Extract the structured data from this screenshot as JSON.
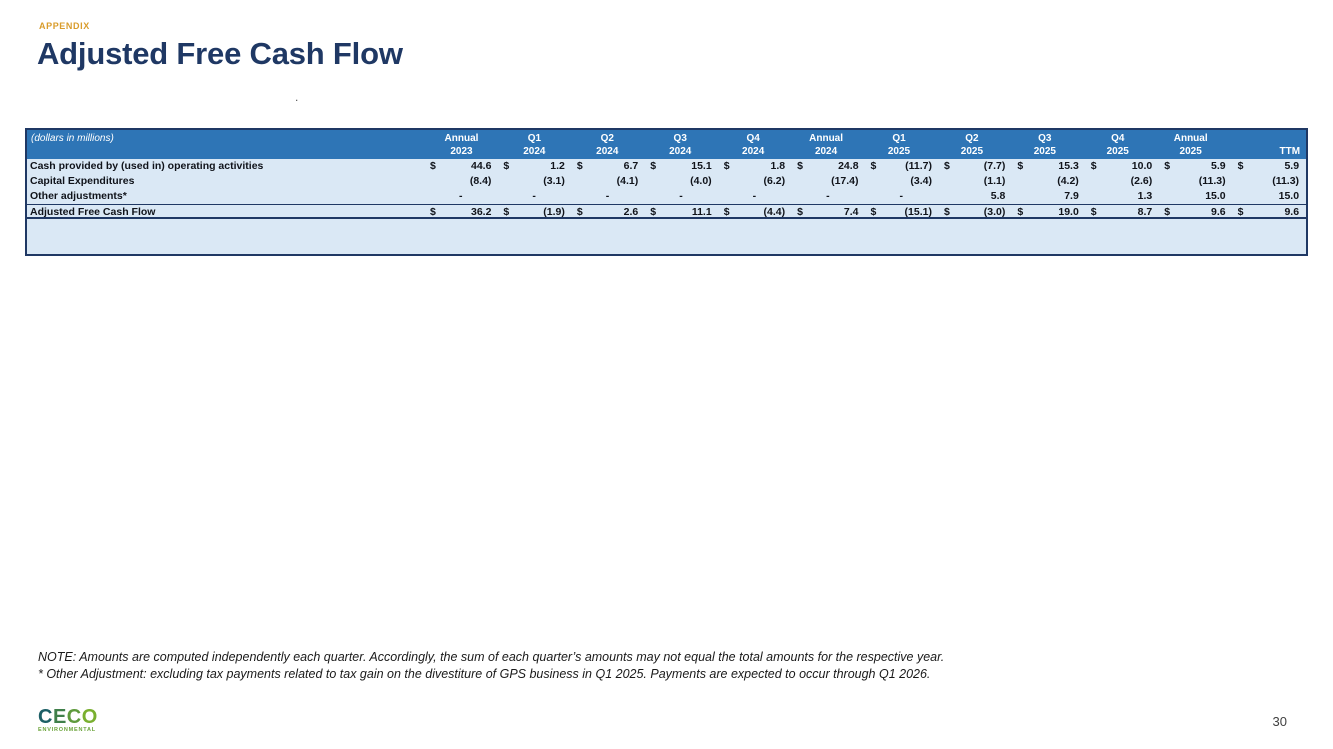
{
  "slide": {
    "kicker": "APPENDIX",
    "title": "Adjusted Free Cash Flow",
    "stray_mark": ".",
    "page_number": "30"
  },
  "table": {
    "corner_label": "(dollars in millions)",
    "columns": [
      {
        "line1": "Annual",
        "line2": "2023"
      },
      {
        "line1": "Q1",
        "line2": "2024"
      },
      {
        "line1": "Q2",
        "line2": "2024"
      },
      {
        "line1": "Q3",
        "line2": "2024"
      },
      {
        "line1": "Q4",
        "line2": "2024"
      },
      {
        "line1": "Annual",
        "line2": "2024"
      },
      {
        "line1": "Q1",
        "line2": "2025"
      },
      {
        "line1": "Q2",
        "line2": "2025"
      },
      {
        "line1": "Q3",
        "line2": "2025"
      },
      {
        "line1": "Q4",
        "line2": "2025"
      },
      {
        "line1": "Annual",
        "line2": "2025"
      },
      {
        "line1": "",
        "line2": "TTM",
        "align": "right"
      }
    ],
    "rows": [
      {
        "label": "Cash provided by (used in) operating activities",
        "dollar": true,
        "total": false,
        "values": [
          "44.6",
          "1.2",
          "6.7",
          "15.1",
          "1.8",
          "24.8",
          "(11.7)",
          "(7.7)",
          "15.3",
          "10.0",
          "5.9",
          "5.9"
        ]
      },
      {
        "label": "Capital Expenditures",
        "dollar": false,
        "total": false,
        "values": [
          "(8.4)",
          "(3.1)",
          "(4.1)",
          "(4.0)",
          "(6.2)",
          "(17.4)",
          "(3.4)",
          "(1.1)",
          "(4.2)",
          "(2.6)",
          "(11.3)",
          "(11.3)"
        ]
      },
      {
        "label": "Other adjustments*",
        "dollar": false,
        "total": false,
        "values": [
          "-",
          "-",
          "-",
          "-",
          "-",
          "-",
          "-",
          "5.8",
          "7.9",
          "1.3",
          "15.0",
          "15.0"
        ]
      },
      {
        "label": "Adjusted Free Cash Flow",
        "dollar": true,
        "total": true,
        "values": [
          "36.2",
          "(1.9)",
          "2.6",
          "11.1",
          "(4.4)",
          "7.4",
          "(15.1)",
          "(3.0)",
          "19.0",
          "8.7",
          "9.6",
          "9.6"
        ]
      }
    ]
  },
  "notes": [
    "NOTE: Amounts are computed independently each quarter. Accordingly, the sum of each quarter’s amounts may not equal the total amounts for the respective year.",
    "* Other Adjustment: excluding tax payments related to tax gain on the divestiture of GPS business in Q1 2025. Payments are expected to occur through Q1 2026."
  ],
  "logo": {
    "name": "CECO",
    "sub": "ENVIRONMENTAL"
  },
  "colors": {
    "kicker": "#D99C2B",
    "title": "#1F3864",
    "header_bg": "#2E75B6",
    "row_bg": "#DAE8F5",
    "table_border": "#1F3864",
    "logo_letters": [
      "#1C5F66",
      "#3F7F4A",
      "#5E9A3C",
      "#79AF2F"
    ],
    "logo_sub": "#6BA43A"
  }
}
